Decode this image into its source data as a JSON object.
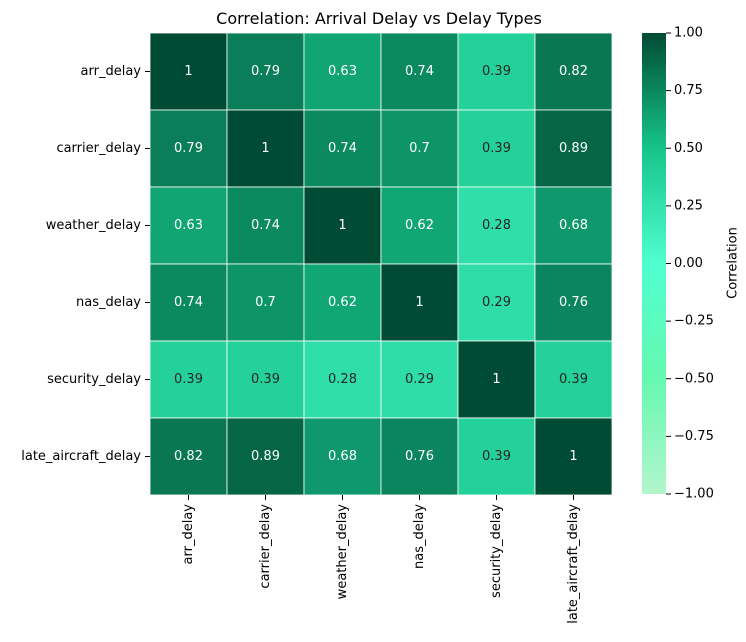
{
  "chart_data": {
    "type": "heatmap",
    "title": "Correlation: Arrival Delay vs Delay Types",
    "rows": [
      "arr_delay",
      "carrier_delay",
      "weather_delay",
      "nas_delay",
      "security_delay",
      "late_aircraft_delay"
    ],
    "columns": [
      "arr_delay",
      "carrier_delay",
      "weather_delay",
      "nas_delay",
      "security_delay",
      "late_aircraft_delay"
    ],
    "values": [
      [
        1,
        0.79,
        0.63,
        0.74,
        0.39,
        0.82
      ],
      [
        0.79,
        1,
        0.74,
        0.7,
        0.39,
        0.89
      ],
      [
        0.63,
        0.74,
        1,
        0.62,
        0.28,
        0.68
      ],
      [
        0.74,
        0.7,
        0.62,
        1,
        0.29,
        0.76
      ],
      [
        0.39,
        0.39,
        0.28,
        0.29,
        1,
        0.39
      ],
      [
        0.82,
        0.89,
        0.68,
        0.76,
        0.39,
        1
      ]
    ],
    "colorbar": {
      "label": "Correlation",
      "vmin": -1,
      "vmax": 1,
      "ticks": [
        1.0,
        0.75,
        0.5,
        0.25,
        0.0,
        -0.25,
        -0.5,
        -0.75,
        -1.0
      ],
      "tick_labels": [
        "1.00",
        "0.75",
        "0.50",
        "0.25",
        "0.00",
        "−0.25",
        "−0.50",
        "−0.75",
        "−1.00"
      ],
      "colors": {
        "low": "#b3f5cc",
        "lower_mid": "#66f8b0",
        "mid": "#4fffcf",
        "upper_mid": "#16c48a",
        "high": "#004b33"
      }
    },
    "grid_line_color": "#ffffff"
  }
}
